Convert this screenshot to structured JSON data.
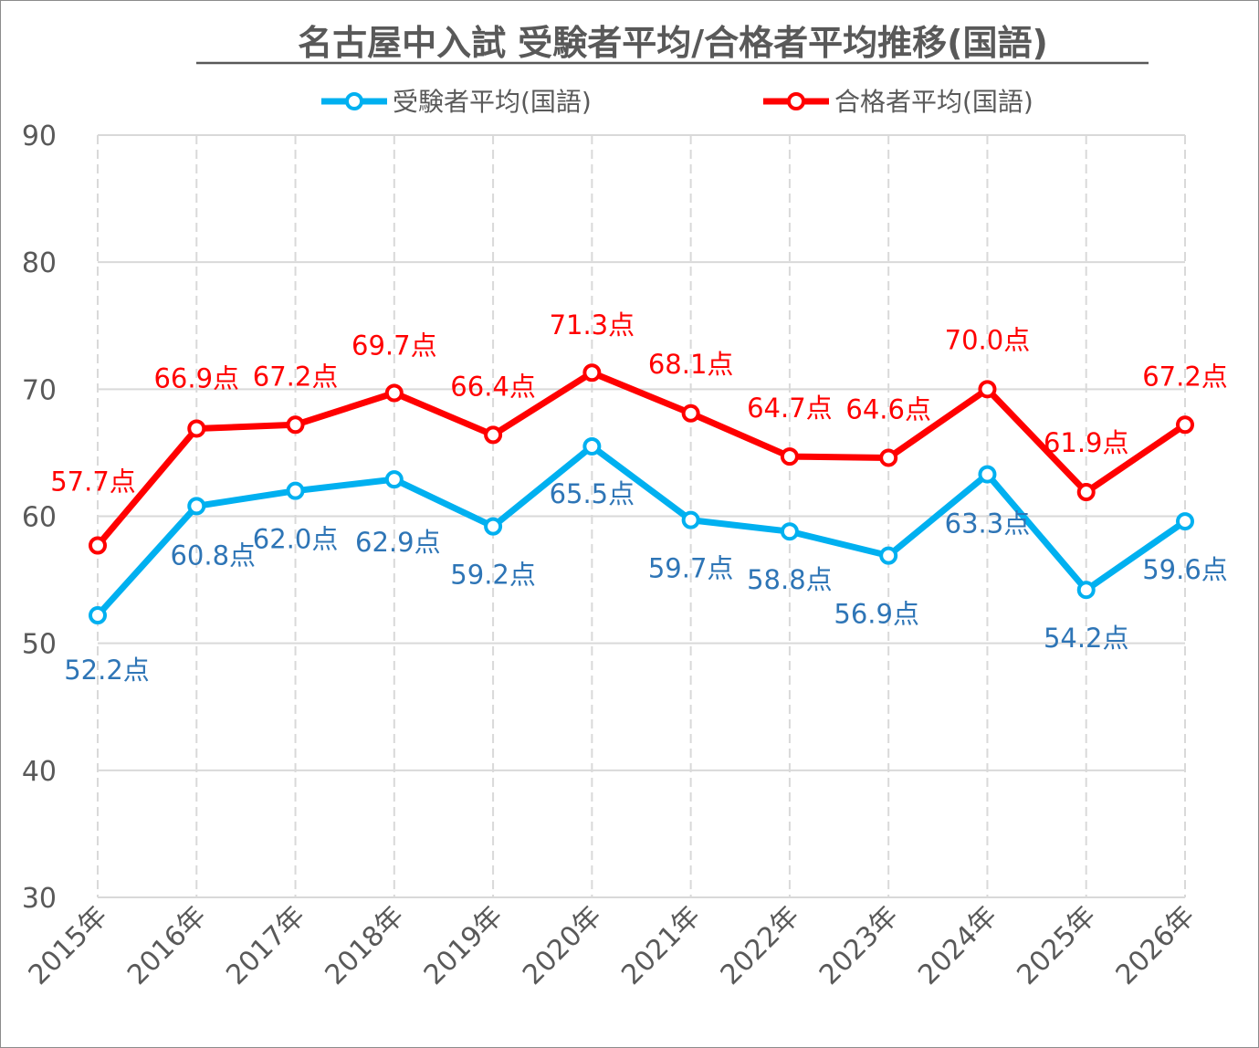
{
  "chart_data": {
    "type": "line",
    "title": "名古屋中入試 受験者平均/合格者平均推移(国語)",
    "xlabel": "",
    "ylabel": "",
    "ylim": [
      30,
      90
    ],
    "yticks": [
      "30",
      "40",
      "50",
      "60",
      "70",
      "80",
      "90"
    ],
    "grid": true,
    "legend_position": "top",
    "categories": [
      "2015年",
      "2016年",
      "2017年",
      "2018年",
      "2019年",
      "2020年",
      "2021年",
      "2022年",
      "2023年",
      "2024年",
      "2025年",
      "2026年"
    ],
    "series": [
      {
        "name": "受験者平均(国語)",
        "color": "#00b0f0",
        "label_color": "#2e75b6",
        "values": [
          52.2,
          60.8,
          62.0,
          62.9,
          59.2,
          65.5,
          59.7,
          58.8,
          56.9,
          63.3,
          54.2,
          59.6
        ],
        "labels": [
          "52.2点",
          "60.8点",
          "62.0点",
          "62.9点",
          "59.2点",
          "65.5点",
          "59.7点",
          "58.8点",
          "56.9点",
          "63.3点",
          "54.2点",
          "59.6点"
        ]
      },
      {
        "name": "合格者平均(国語)",
        "color": "#ff0000",
        "label_color": "#ff0000",
        "values": [
          57.7,
          66.9,
          67.2,
          69.7,
          66.4,
          71.3,
          68.1,
          64.7,
          64.6,
          70.0,
          61.9,
          67.2
        ],
        "labels": [
          "57.7点",
          "66.9点",
          "67.2点",
          "69.7点",
          "66.4点",
          "71.3点",
          "68.1点",
          "64.7点",
          "64.6点",
          "70.0点",
          "61.9点",
          "67.2点"
        ]
      }
    ]
  }
}
